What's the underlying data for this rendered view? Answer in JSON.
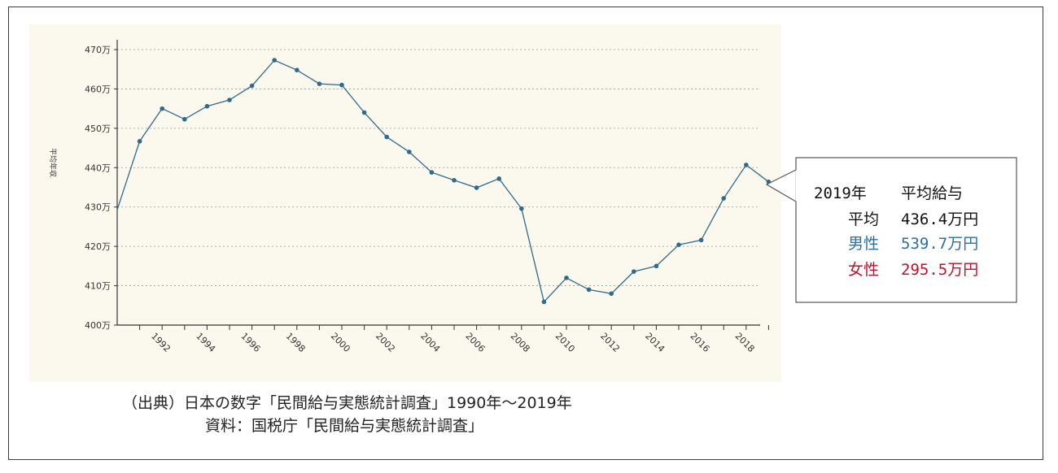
{
  "chart_data": {
    "type": "line",
    "ylabel": "平均年収",
    "xlabel": "",
    "ylim": [
      400,
      470
    ],
    "y_ticks": [
      {
        "value": 400,
        "label": "400万"
      },
      {
        "value": 410,
        "label": "410万"
      },
      {
        "value": 420,
        "label": "420万"
      },
      {
        "value": 430,
        "label": "430万"
      },
      {
        "value": 440,
        "label": "440万"
      },
      {
        "value": 450,
        "label": "450万"
      },
      {
        "value": 460,
        "label": "460万"
      },
      {
        "value": 470,
        "label": "470万"
      }
    ],
    "x_ticks": [
      "1992",
      "1994",
      "1996",
      "1998",
      "2000",
      "2002",
      "2004",
      "2006",
      "2008",
      "2010",
      "2012",
      "2014",
      "2016",
      "2018"
    ],
    "grid": "horizontal-dashed",
    "series": [
      {
        "color": "#2f6b8c",
        "x": [
          1990,
          1991,
          1992,
          1993,
          1994,
          1995,
          1996,
          1997,
          1998,
          1999,
          2000,
          2001,
          2002,
          2003,
          2004,
          2005,
          2006,
          2007,
          2008,
          2009,
          2010,
          2011,
          2012,
          2013,
          2014,
          2015,
          2016,
          2017,
          2018,
          2019
        ],
        "values": [
          429.3,
          446.7,
          455.0,
          452.3,
          455.6,
          457.2,
          460.8,
          467.3,
          464.8,
          461.3,
          461.0,
          454.0,
          447.8,
          444.0,
          438.8,
          436.8,
          434.9,
          437.2,
          429.6,
          405.9,
          412.0,
          409.0,
          408.0,
          413.6,
          415.0,
          420.4,
          421.6,
          432.2,
          440.7,
          436.4
        ]
      }
    ]
  },
  "callout": {
    "header_year": "2019年",
    "header_label": "平均給与",
    "rows": [
      {
        "label": "平均",
        "value": "436.4万円",
        "color": "#111111"
      },
      {
        "label": "男性",
        "value": "539.7万円",
        "color": "#2a6fa8"
      },
      {
        "label": "女性",
        "value": "295.5万円",
        "color": "#c0102a"
      }
    ]
  },
  "source": {
    "line1": "（出典）日本の数字「民間給与実態統計調査」1990年～2019年",
    "line2": "資料：国税庁「民間給与実態統計調査」"
  }
}
